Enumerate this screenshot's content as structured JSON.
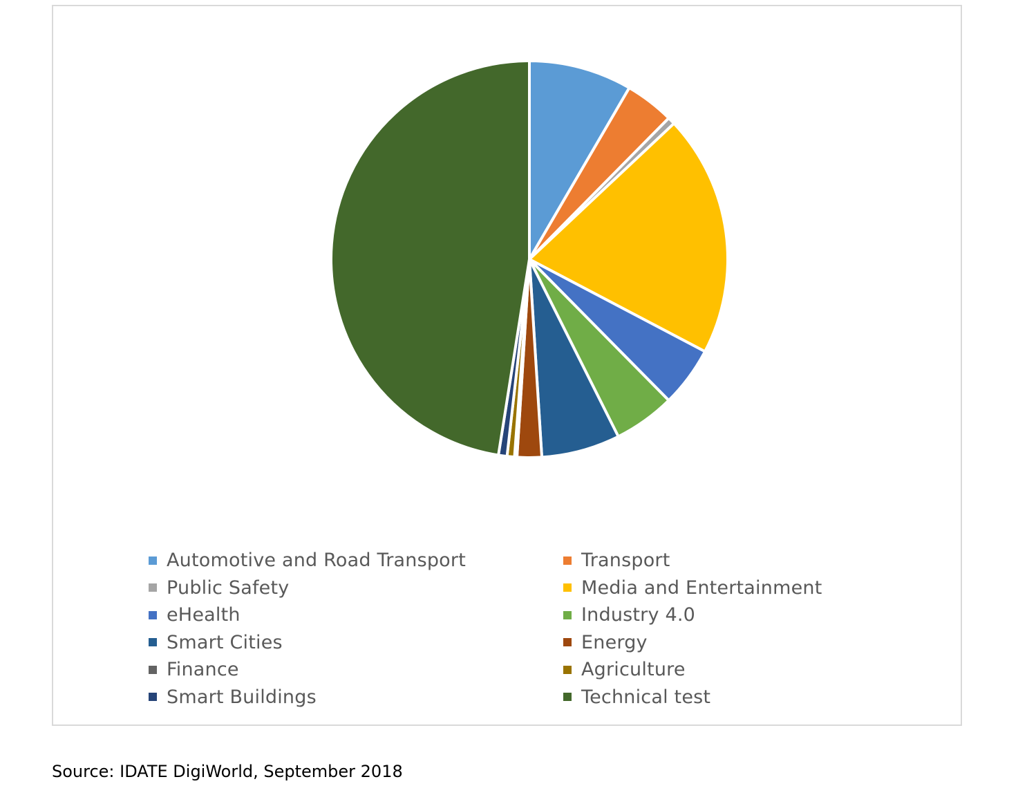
{
  "chart_data": {
    "type": "pie",
    "title": "",
    "categories": [
      "Automotive and Road Transport",
      "Transport",
      "Public Safety",
      "Media and Entertainment",
      "eHealth",
      "Industry 4.0",
      "Smart Cities",
      "Energy",
      "Finance",
      "Agriculture",
      "Smart Buildings",
      "Technical test"
    ],
    "values": [
      8.4,
      4.0,
      0.6,
      19.7,
      4.9,
      5.0,
      6.4,
      2.0,
      0.2,
      0.6,
      0.7,
      47.5
    ],
    "colors": [
      "#5b9bd5",
      "#ed7d31",
      "#a5a5a5",
      "#ffc000",
      "#4472c4",
      "#70ad47",
      "#255e91",
      "#9e480e",
      "#636363",
      "#997300",
      "#264478",
      "#43682b"
    ],
    "start_angle_deg": 0,
    "direction": "clockwise",
    "legend_position": "bottom"
  },
  "source": {
    "text": "Source: IDATE DigiWorld, September 2018"
  }
}
